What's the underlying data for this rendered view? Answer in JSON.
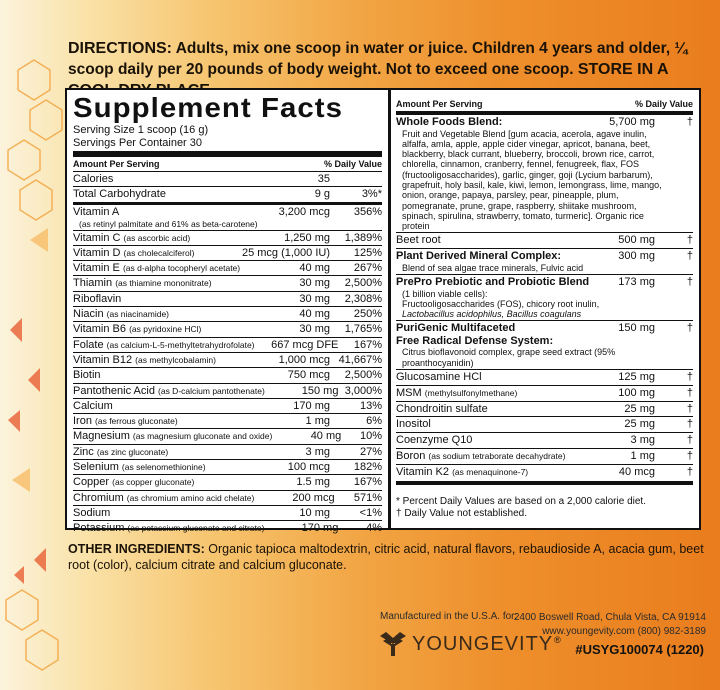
{
  "directions": {
    "lead": "DIRECTIONS:",
    "text": "Adults, mix one scoop in water or juice. Children 4 years and older, ¼ scoop daily per 20 pounds of body weight. Not to exceed one scoop.",
    "store": "STORE IN A COOL DRY PLACE."
  },
  "facts": {
    "title": "Supplement Facts",
    "serving_size": "Serving Size 1 scoop (16 g)",
    "servings_per": "Servings Per Container 30",
    "header_amount": "Amount Per Serving",
    "header_dv": "% Daily Value",
    "rows": [
      {
        "name": "Calories",
        "sub": "",
        "amount": "35",
        "dv": ""
      },
      {
        "name": "Total Carbohydrate",
        "sub": "",
        "amount": "9 g",
        "dv": "3%*"
      },
      {
        "name": "Vitamin A",
        "sub": "(as retinyl palmitate and 61% as beta-carotene)",
        "amount": "3,200 mcg",
        "dv": "356%"
      },
      {
        "name": "Vitamin C",
        "sub": "(as ascorbic acid)",
        "amount": "1,250 mg",
        "dv": "1,389%"
      },
      {
        "name": "Vitamin D",
        "sub": "(as cholecalciferol)",
        "amount": "25 mcg (1,000 IU)",
        "dv": "125%"
      },
      {
        "name": "Vitamin E",
        "sub": "(as d-alpha tocopheryl acetate)",
        "amount": "40 mg",
        "dv": "267%"
      },
      {
        "name": "Thiamin",
        "sub": "(as thiamine mononitrate)",
        "amount": "30 mg",
        "dv": "2,500%"
      },
      {
        "name": "Riboflavin",
        "sub": "",
        "amount": "30 mg",
        "dv": "2,308%"
      },
      {
        "name": "Niacin",
        "sub": "(as niacinamide)",
        "amount": "40 mg",
        "dv": "250%"
      },
      {
        "name": "Vitamin B6",
        "sub": "(as pyridoxine HCl)",
        "amount": "30 mg",
        "dv": "1,765%"
      },
      {
        "name": "Folate",
        "sub": "(as calcium-L-5-methyltetrahydrofolate)",
        "amount": "667 mcg DFE",
        "dv": "167%"
      },
      {
        "name": "Vitamin B12",
        "sub": "(as methylcobalamin)",
        "amount": "1,000 mcg",
        "dv": "41,667%"
      },
      {
        "name": "Biotin",
        "sub": "",
        "amount": "750 mcg",
        "dv": "2,500%"
      },
      {
        "name": "Pantothenic Acid",
        "sub": "(as D-calcium pantothenate)",
        "amount": "150 mg",
        "dv": "3,000%"
      },
      {
        "name": "Calcium",
        "sub": "",
        "amount": "170 mg",
        "dv": "13%"
      },
      {
        "name": "Iron",
        "sub": "(as ferrous gluconate)",
        "amount": "1 mg",
        "dv": "6%"
      },
      {
        "name": "Magnesium",
        "sub": "(as magnesium gluconate and oxide)",
        "amount": "40 mg",
        "dv": "10%"
      },
      {
        "name": "Zinc",
        "sub": "(as zinc gluconate)",
        "amount": "3 mg",
        "dv": "27%"
      },
      {
        "name": "Selenium",
        "sub": "(as selenomethionine)",
        "amount": "100 mcg",
        "dv": "182%"
      },
      {
        "name": "Copper",
        "sub": "(as copper gluconate)",
        "amount": "1.5 mg",
        "dv": "167%"
      },
      {
        "name": "Chromium",
        "sub": "(as chromium amino acid chelate)",
        "amount": "200 mcg",
        "dv": "571%"
      },
      {
        "name": "Sodium",
        "sub": "",
        "amount": "10 mg",
        "dv": "<1%"
      },
      {
        "name": "Potassium",
        "sub": "(as potassium gluconate and citrate)",
        "amount": "170 mg",
        "dv": "4%"
      }
    ],
    "right": {
      "whole_foods": {
        "name": "Whole Foods Blend:",
        "amount": "5,700 mg",
        "dv": "†",
        "desc": "Fruit and Vegetable Blend [gum acacia, acerola, agave inulin, alfalfa, amla, apple, apple cider vinegar, apricot, banana, beet, blackberry, black currant, blueberry, broccoli, brown rice, carrot, chlorella, cinnamon, cranberry, fennel, fenugreek, flax, FOS (fructooligosaccharides), garlic, ginger, goji (Lycium barbarum), grapefruit, holy basil, kale, kiwi, lemon, lemongrass, lime, mango, onion, orange, papaya, parsley, pear, pineapple, plum, pomegranate, prune, grape, raspberry, shiitake mushroom, spinach, spirulina, strawberry, tomato, turmeric]. Organic rice protein"
      },
      "beet": {
        "name": "Beet root",
        "amount": "500 mg",
        "dv": "†"
      },
      "mineral": {
        "name": "Plant Derived Mineral Complex:",
        "amount": "300 mg",
        "dv": "†",
        "desc": "Blend of sea algae trace minerals, Fulvic acid"
      },
      "prepro": {
        "name": "PrePro Prebiotic and Probiotic Blend",
        "amount": "173 mg",
        "dv": "†",
        "desc1": "(1 billion viable cells):",
        "desc2": "Fructooligosaccharides (FOS), chicory root inulin,",
        "desc3": "Lactobacillus acidophilus, Bacillus coagulans"
      },
      "purigenic": {
        "name1": "PuriGenic Multifaceted",
        "name2": "Free Radical Defense System:",
        "amount": "150 mg",
        "dv": "†",
        "desc": "Citrus bioflavonoid complex, grape seed extract (95% proanthocyanidin)"
      },
      "simple": [
        {
          "name": "Glucosamine HCl",
          "sub": "",
          "amount": "125 mg",
          "dv": "†"
        },
        {
          "name": "MSM",
          "sub": "(methylsulfonylmethane)",
          "amount": "100 mg",
          "dv": "†"
        },
        {
          "name": "Chondroitin sulfate",
          "sub": "",
          "amount": "25 mg",
          "dv": "†"
        },
        {
          "name": "Inositol",
          "sub": "",
          "amount": "25 mg",
          "dv": "†"
        },
        {
          "name": "Coenzyme Q10",
          "sub": "",
          "amount": "3 mg",
          "dv": "†"
        },
        {
          "name": "Boron",
          "sub": "(as sodium tetraborate decahydrate)",
          "amount": "1 mg",
          "dv": "†"
        },
        {
          "name": "Vitamin K2",
          "sub": "(as menaquinone-7)",
          "amount": "40 mcg",
          "dv": "†"
        }
      ],
      "footnote1": "* Percent Daily Values are based on a 2,000 calorie diet.",
      "footnote2": "† Daily Value not established."
    }
  },
  "other": {
    "label": "OTHER INGREDIENTS:",
    "text": "Organic tapioca maltodextrin, citric acid, natural flavors, rebaudioside A, acacia gum, beet root (color), calcium citrate and calcium gluconate."
  },
  "footer": {
    "manufactured": "Manufactured in the U.S.A. for:",
    "address": "2400 Boswell Road, Chula Vista, CA 91914",
    "contact": "www.youngevity.com (800) 982-3189",
    "brand": "YOUNGEVITY",
    "brand_mark": "®",
    "code": "#USYG100074 (1220)"
  }
}
